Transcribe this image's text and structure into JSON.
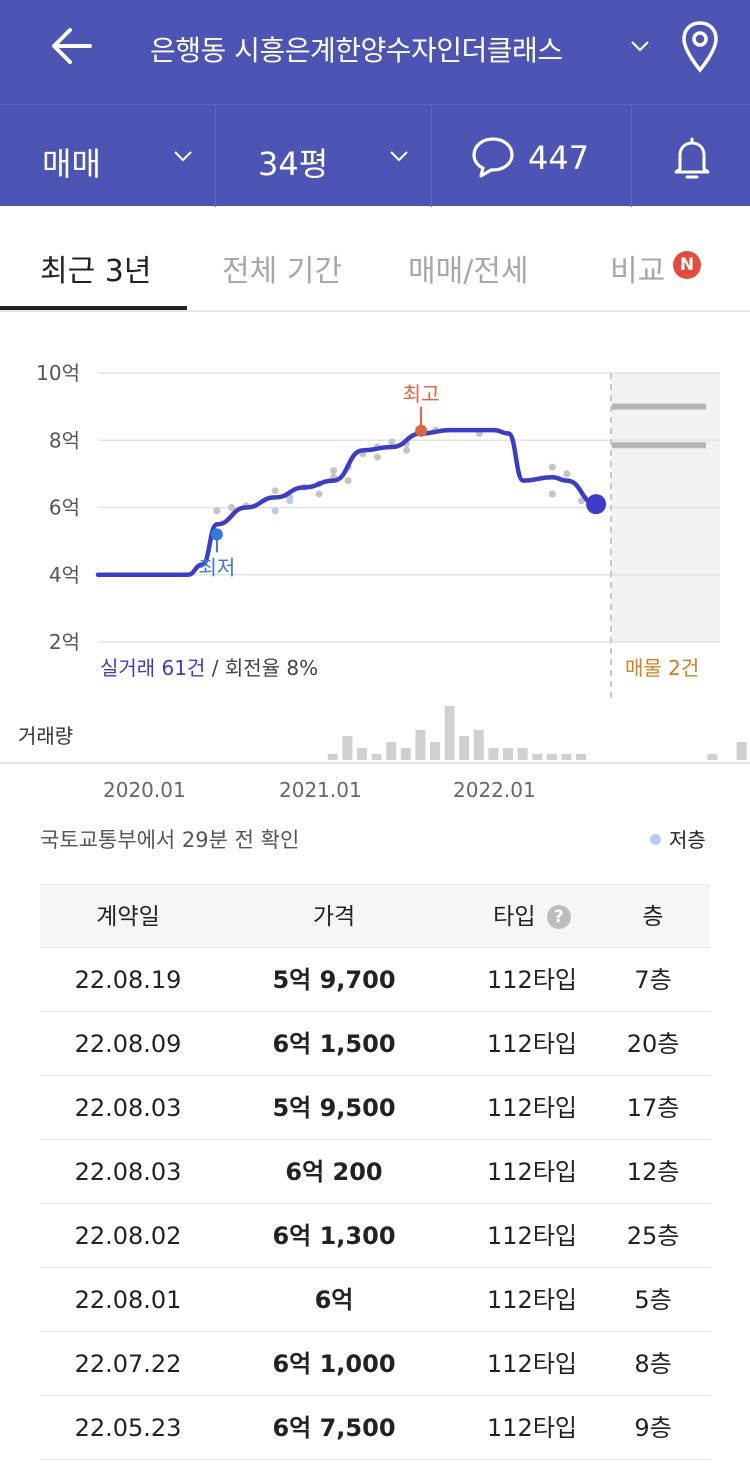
{
  "header": {
    "title": "은행동 시흥은계한양수자인더클래스",
    "deal_type": "매매",
    "size": "34평",
    "comment_count": "447"
  },
  "tabs": [
    {
      "label": "최근 3년",
      "active": true
    },
    {
      "label": "전체 기간",
      "active": false
    },
    {
      "label": "매매/전세",
      "active": false
    },
    {
      "label": "비교",
      "active": false,
      "badge": "N"
    }
  ],
  "chart_data": {
    "type": "line",
    "y_tick_labels": [
      "10억",
      "8억",
      "6억",
      "4억",
      "2억"
    ],
    "y_ticks": [
      10,
      8,
      6,
      4,
      2
    ],
    "ylim": [
      2,
      10
    ],
    "unit": "억",
    "x_tick_labels": [
      "2020.01",
      "2021.01",
      "2022.01"
    ],
    "series": [
      {
        "x": [
          "2019.10",
          "2020.01",
          "2020.04",
          "2020.05",
          "2020.06",
          "2020.08",
          "2020.10",
          "2020.12",
          "2021.02",
          "2021.04",
          "2021.06",
          "2021.08",
          "2021.10",
          "2022.01",
          "2022.02",
          "2022.03",
          "2022.05",
          "2022.06",
          "2022.08"
        ],
        "values": [
          4.0,
          4.0,
          4.0,
          4.3,
          5.5,
          6.0,
          6.3,
          6.6,
          6.8,
          7.7,
          7.8,
          8.2,
          8.3,
          8.3,
          8.2,
          6.8,
          6.9,
          6.8,
          6.1
        ]
      }
    ],
    "scatter_points": [
      {
        "x": "2020.06",
        "y": 5.9
      },
      {
        "x": "2020.07",
        "y": 6.0
      },
      {
        "x": "2020.08",
        "y": 6.05
      },
      {
        "x": "2020.10",
        "y": 6.5
      },
      {
        "x": "2020.11",
        "y": 6.3
      },
      {
        "x": "2020.12",
        "y": 6.6
      },
      {
        "x": "2021.01",
        "y": 6.4
      },
      {
        "x": "2021.01",
        "y": 6.7
      },
      {
        "x": "2021.02",
        "y": 6.9
      },
      {
        "x": "2021.02",
        "y": 7.1
      },
      {
        "x": "2021.03",
        "y": 6.8
      },
      {
        "x": "2021.03",
        "y": 7.2
      },
      {
        "x": "2021.04",
        "y": 7.6
      },
      {
        "x": "2021.05",
        "y": 7.8
      },
      {
        "x": "2021.05",
        "y": 7.5
      },
      {
        "x": "2021.06",
        "y": 7.95
      },
      {
        "x": "2021.07",
        "y": 7.7
      },
      {
        "x": "2021.07",
        "y": 7.9
      },
      {
        "x": "2021.09",
        "y": 8.3
      },
      {
        "x": "2021.12",
        "y": 8.2
      },
      {
        "x": "2022.05",
        "y": 7.2
      },
      {
        "x": "2022.05",
        "y": 6.4
      },
      {
        "x": "2022.06",
        "y": 7.0
      },
      {
        "x": "2022.07",
        "y": 6.2
      },
      {
        "x": "2022.08",
        "y": 6.15
      }
    ],
    "low_floor_points": [
      {
        "x": "2020.10",
        "y": 5.9
      },
      {
        "x": "2020.11",
        "y": 6.2
      }
    ],
    "annotations": [
      {
        "label": "최고",
        "x": "2021.08",
        "y": 8.4
      },
      {
        "label": "최저",
        "x": "2020.06",
        "y": 5.2
      }
    ],
    "listing_ranges": [
      9.0,
      7.85
    ],
    "volume": [
      0,
      0,
      0,
      0,
      0,
      0,
      0,
      0,
      1,
      4,
      2,
      1,
      3,
      2,
      5,
      3,
      9,
      4,
      5,
      2,
      2,
      2,
      1,
      1,
      1,
      1,
      0,
      0,
      0,
      0,
      0,
      0,
      0,
      0,
      1,
      0,
      3,
      2,
      0,
      0,
      1,
      6
    ],
    "summary": {
      "real_deals": "실거래 61건",
      "turnover": " / 회전율 8%",
      "listings": "매물 2건"
    },
    "volume_label": "거래량",
    "legend": {
      "low_floor": "저층"
    },
    "colors": {
      "line": "#3b3ccc",
      "high": "#e2633b",
      "low": "#3479e0",
      "scatter": "#c4c4c4",
      "listing": "#d08020"
    }
  },
  "source_note": "국토교통부에서 29분 전 확인",
  "table": {
    "headers": {
      "date": "계약일",
      "price": "가격",
      "type": "타입",
      "floor": "층",
      "help": "?"
    },
    "rows": [
      {
        "date": "22.08.19",
        "price": "5억 9,700",
        "type": "112타입",
        "floor": "7층"
      },
      {
        "date": "22.08.09",
        "price": "6억 1,500",
        "type": "112타입",
        "floor": "20층"
      },
      {
        "date": "22.08.03",
        "price": "5억 9,500",
        "type": "112타입",
        "floor": "17층"
      },
      {
        "date": "22.08.03",
        "price": "6억 200",
        "type": "112타입",
        "floor": "12층"
      },
      {
        "date": "22.08.02",
        "price": "6억 1,300",
        "type": "112타입",
        "floor": "25층"
      },
      {
        "date": "22.08.01",
        "price": "6억",
        "type": "112타입",
        "floor": "5층"
      },
      {
        "date": "22.07.22",
        "price": "6억 1,000",
        "type": "112타입",
        "floor": "8층"
      },
      {
        "date": "22.05.23",
        "price": "6억 7,500",
        "type": "112타입",
        "floor": "9층"
      }
    ]
  }
}
